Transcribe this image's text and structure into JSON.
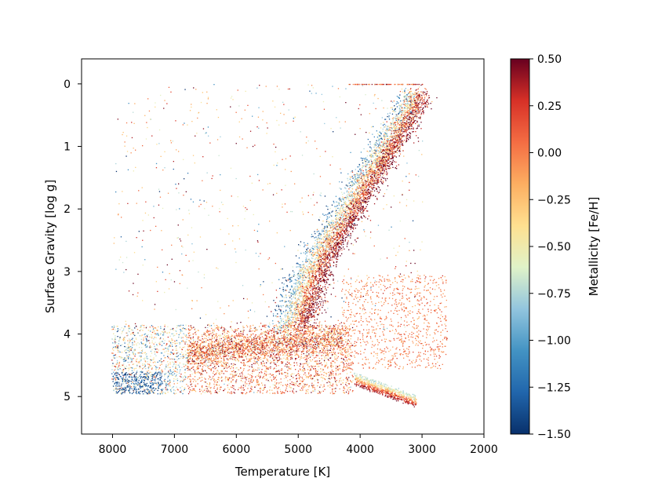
{
  "chart_data": {
    "type": "scatter",
    "title": "",
    "xlabel": "Temperature [K]",
    "ylabel": "Surface Gravity [log g]",
    "xlim": [
      8500,
      2000
    ],
    "ylim": [
      5.6,
      -0.4
    ],
    "x_inverted": true,
    "y_inverted": true,
    "grid": false,
    "x_ticks": [
      8000,
      7000,
      6000,
      5000,
      4000,
      3000,
      2000
    ],
    "x_tick_labels": [
      "8000",
      "7000",
      "6000",
      "5000",
      "4000",
      "3000",
      "2000"
    ],
    "y_ticks": [
      0,
      1,
      2,
      3,
      4,
      5
    ],
    "y_tick_labels": [
      "0",
      "1",
      "2",
      "3",
      "4",
      "5"
    ],
    "colorbar": {
      "label": "Metallicity [Fe/H]",
      "range": [
        -1.5,
        0.5
      ],
      "colormap": "RdYlBu_r",
      "ticks": [
        0.5,
        0.25,
        0.0,
        -0.25,
        -0.5,
        -0.75,
        -1.0,
        -1.25,
        -1.5
      ],
      "tick_labels": [
        "0.50",
        "0.25",
        "0.00",
        "−0.25",
        "−0.50",
        "−0.75",
        "−1.00",
        "−1.25",
        "−1.50"
      ],
      "stops": [
        "#08306b",
        "#2166ac",
        "#4393c3",
        "#92c5de",
        "#e0f3c8",
        "#fee090",
        "#fdae61",
        "#f46d43",
        "#d73027",
        "#67001f"
      ]
    },
    "series": [
      {
        "description_points_T": [
          3050,
          3300,
          3600,
          3900,
          4200,
          4450,
          4700,
          4850,
          4950,
          5150,
          5600
        ],
        "description_points_logg": [
          0.3,
          0.7,
          1.2,
          1.7,
          2.2,
          2.6,
          3.1,
          3.6,
          3.85,
          4.0,
          4.15
        ]
      }
    ]
  }
}
